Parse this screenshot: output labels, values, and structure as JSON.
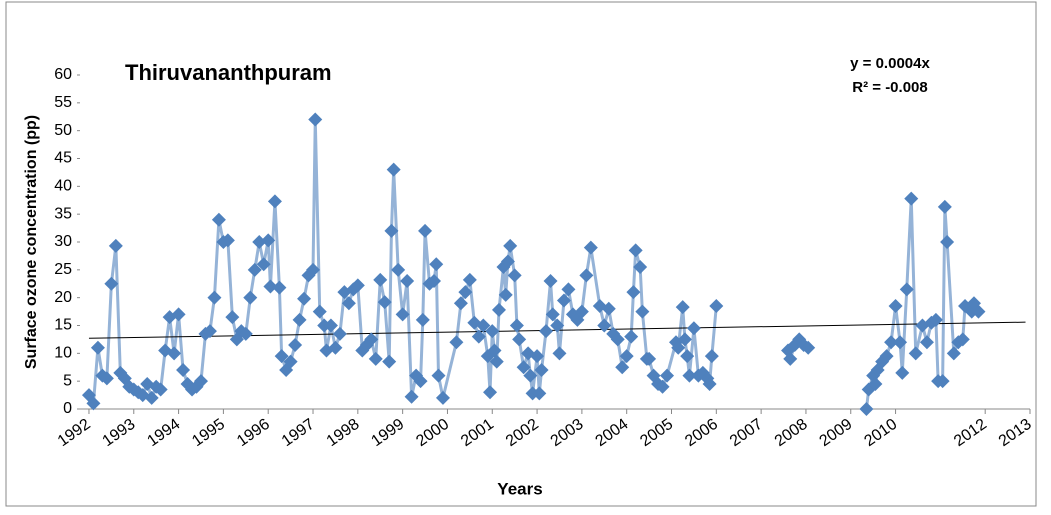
{
  "chart_data": {
    "type": "line",
    "title": "Thiruvananthpuram",
    "annotations": [
      "y = 0.0004x",
      "R² = -0.008"
    ],
    "xlabel": "Years",
    "ylabel": "Surface ozone concentration (pp)",
    "marker_color": "#4f81bd",
    "line_color": "#95b3d7",
    "x": [
      1992.0,
      1992.1,
      1992.2,
      1992.3,
      1992.4,
      1992.5,
      1992.6,
      1992.7,
      1992.8,
      1992.9,
      1993.0,
      1993.1,
      1993.2,
      1993.3,
      1993.4,
      1993.5,
      1993.6,
      1993.7,
      1993.8,
      1993.9,
      1994.0,
      1994.1,
      1994.2,
      1994.3,
      1994.4,
      1994.5,
      1994.6,
      1994.7,
      1994.8,
      1994.9,
      1995.0,
      1995.1,
      1995.2,
      1995.3,
      1995.4,
      1995.5,
      1995.6,
      1995.7,
      1995.8,
      1995.9,
      1996.0,
      1996.05,
      1996.15,
      1996.25,
      1996.3,
      1996.4,
      1996.5,
      1996.6,
      1996.7,
      1996.8,
      1996.9,
      1997.0,
      1997.05,
      1997.15,
      1997.25,
      1997.3,
      1997.4,
      1997.5,
      1997.6,
      1997.7,
      1997.8,
      1997.9,
      1998.0,
      1998.1,
      1998.2,
      1998.3,
      1998.4,
      1998.5,
      1998.6,
      1998.7,
      1998.75,
      1998.8,
      1998.9,
      1999.0,
      1999.1,
      1999.2,
      1999.3,
      1999.4,
      1999.45,
      1999.5,
      1999.6,
      1999.7,
      1999.75,
      1999.8,
      1999.9,
      2000.2,
      2000.3,
      2000.4,
      2000.5,
      2000.6,
      2000.7,
      2000.8,
      2000.9,
      2000.95,
      2001.0,
      2001.05,
      2001.1,
      2001.15,
      2001.25,
      2001.3,
      2001.35,
      2001.4,
      2001.5,
      2001.55,
      2001.6,
      2001.7,
      2001.8,
      2001.85,
      2001.9,
      2002.0,
      2002.05,
      2002.1,
      2002.2,
      2002.3,
      2002.35,
      2002.45,
      2002.5,
      2002.6,
      2002.7,
      2002.8,
      2002.9,
      2003.0,
      2003.1,
      2003.2,
      2003.4,
      2003.5,
      2003.6,
      2003.7,
      2003.8,
      2003.9,
      2004.0,
      2004.1,
      2004.15,
      2004.2,
      2004.3,
      2004.35,
      2004.45,
      2004.5,
      2004.6,
      2004.7,
      2004.8,
      2004.9,
      2005.1,
      2005.15,
      2005.25,
      2005.3,
      2005.35,
      2005.4,
      2005.5,
      2005.6,
      2005.7,
      2005.8,
      2005.85,
      2005.9,
      2006.0,
      null,
      2007.6,
      2007.65,
      2007.75,
      2007.85,
      2007.95,
      2008.05,
      null,
      2009.35,
      2009.4,
      2009.5,
      2009.55,
      2009.6,
      2009.7,
      2009.8,
      2009.9,
      2010.0,
      2010.1,
      2010.15,
      2010.25,
      2010.35,
      2010.45,
      2010.6,
      2010.7,
      2010.8,
      2010.9,
      2010.95,
      2011.05,
      2011.1,
      2011.15,
      2011.3,
      2011.4,
      2011.5,
      2011.55,
      2011.7,
      2011.75,
      2011.85
    ],
    "values": [
      2.5,
      1,
      11,
      6,
      5.5,
      22.5,
      29.3,
      6.5,
      5.5,
      4,
      3.5,
      3,
      2.5,
      4.5,
      2,
      4,
      3.5,
      10.5,
      16.5,
      10,
      17,
      7,
      4.5,
      3.5,
      4,
      5,
      13.5,
      14,
      20,
      34,
      30,
      30.3,
      16.5,
      12.5,
      14,
      13.5,
      20,
      25,
      30,
      26,
      30.3,
      22,
      37.3,
      21.8,
      9.5,
      7,
      8.5,
      11.5,
      16,
      19.8,
      24,
      25,
      52,
      17.5,
      15,
      10.5,
      15,
      11,
      13.5,
      21,
      19,
      21.5,
      22.2,
      10.5,
      11.5,
      12.5,
      9,
      23.2,
      19.2,
      8.5,
      32,
      43,
      25,
      17,
      23,
      2.2,
      6,
      5,
      16,
      32,
      22.5,
      23,
      26,
      6,
      2,
      12,
      19,
      21,
      23.2,
      15.5,
      13,
      15,
      9.5,
      3,
      14,
      10.5,
      8.5,
      17.8,
      25.5,
      20.5,
      26.5,
      29.3,
      24,
      15,
      12.5,
      7.5,
      10,
      6,
      2.8,
      9.5,
      2.8,
      7,
      14,
      23,
      17,
      15,
      10,
      19.5,
      21.5,
      17,
      16,
      17.5,
      24,
      29,
      18.5,
      15,
      18,
      13.5,
      12.5,
      7.5,
      9.5,
      13,
      21,
      28.5,
      25.5,
      17.5,
      9,
      9,
      6,
      4.5,
      4,
      6,
      12,
      11,
      18.3,
      12.5,
      9.5,
      6,
      14.5,
      6,
      6.5,
      5.5,
      4.5,
      9.5,
      18.5,
      null,
      10.5,
      9,
      11.5,
      12.5,
      11.5,
      11,
      null,
      0,
      3.5,
      6,
      4.5,
      7,
      8.5,
      9.5,
      12,
      18.5,
      12,
      6.5,
      21.5,
      37.8,
      10,
      15,
      12,
      15.5,
      16,
      5,
      5,
      36.3,
      30,
      10,
      12,
      12.5,
      18.5,
      17.5,
      19,
      17.5
    ],
    "trendline": {
      "x": [
        1992,
        2012.9
      ],
      "values": [
        12.7,
        15.6
      ],
      "color": "#000000"
    },
    "xlim": [
      1991.8,
      2013
    ],
    "xticks": [
      1992,
      1993,
      1994,
      1995,
      1996,
      1997,
      1998,
      1999,
      2000,
      2001,
      2002,
      2003,
      2004,
      2005,
      2006,
      2007,
      2008,
      2009,
      2010,
      2012,
      2013
    ],
    "ylim": [
      0,
      60
    ],
    "yticks": [
      0,
      5,
      10,
      15,
      20,
      25,
      30,
      35,
      40,
      45,
      50,
      55,
      60
    ]
  }
}
